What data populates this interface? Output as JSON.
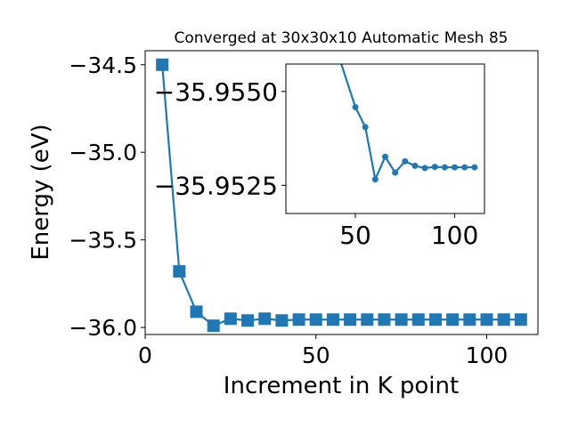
{
  "chart_data": [
    {
      "type": "line",
      "title": "Converged at 30x30x10 Automatic Mesh 85",
      "xlabel": "Increment in K point",
      "ylabel": "Energy (eV)",
      "xlim": [
        0,
        115
      ],
      "ylim": [
        -36.04,
        -34.42
      ],
      "xticks": [
        0,
        50,
        100
      ],
      "yticks": [
        -34.5,
        -35.0,
        -35.5,
        -36.0
      ],
      "ytick_labels": [
        "−34.5",
        "−35.0",
        "−35.5",
        "−36.0"
      ],
      "marker": "square",
      "color": "#1f77b4",
      "series": [
        {
          "x": [
            5,
            10,
            15,
            20,
            25,
            30,
            35,
            40,
            45,
            50,
            55,
            60,
            65,
            70,
            75,
            80,
            85,
            90,
            95,
            100,
            105,
            110
          ],
          "y": [
            -34.5,
            -35.68,
            -35.91,
            -35.99,
            -35.95,
            -35.96,
            -35.95,
            -35.96,
            -35.955,
            -35.955,
            -35.955,
            -35.955,
            -35.955,
            -35.955,
            -35.955,
            -35.955,
            -35.955,
            -35.955,
            -35.955,
            -35.955,
            -35.955,
            -35.955
          ]
        }
      ]
    },
    {
      "type": "line",
      "title": "",
      "xlim": [
        15,
        115
      ],
      "ylim": [
        -35.95175,
        -35.95573
      ],
      "xticks": [
        50,
        100
      ],
      "yticks": [
        -35.955,
        -35.9525
      ],
      "ytick_labels": [
        "−35.9550",
        "−35.9525"
      ],
      "marker": "circle",
      "color": "#1f77b4",
      "series": [
        {
          "x": [
            40,
            50,
            55,
            60,
            65,
            70,
            75,
            80,
            85,
            90,
            95,
            100,
            105,
            110
          ],
          "y": [
            -35.9562,
            -35.95458,
            -35.95405,
            -35.95266,
            -35.95326,
            -35.95284,
            -35.95314,
            -35.95302,
            -35.95296,
            -35.95299,
            -35.95298,
            -35.95298,
            -35.95298,
            -35.95298
          ]
        }
      ]
    }
  ]
}
